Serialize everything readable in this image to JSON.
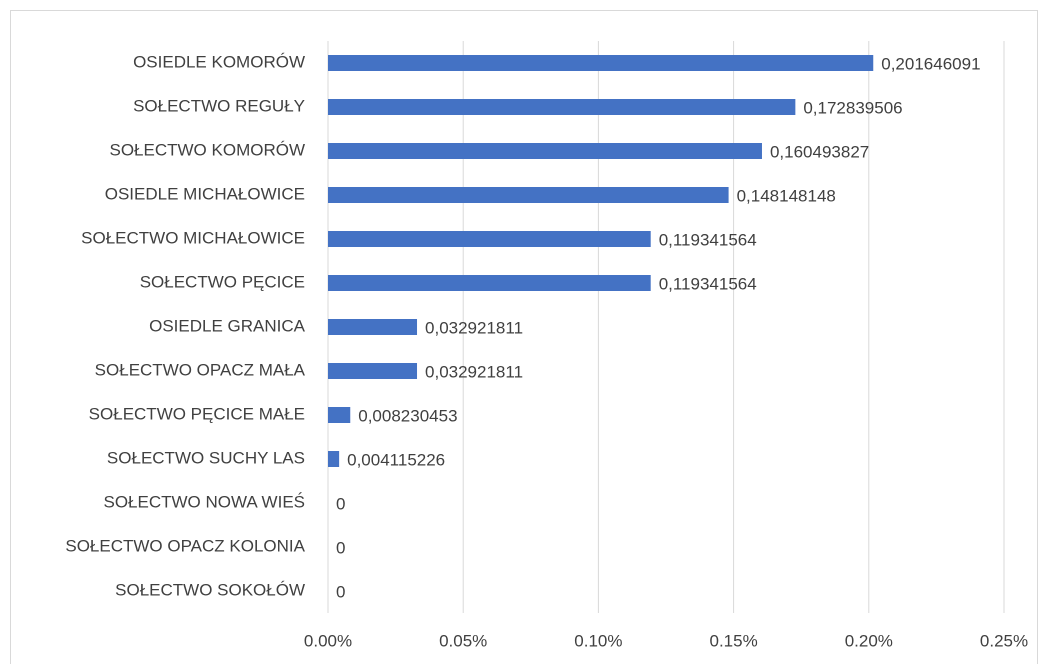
{
  "chart_data": {
    "type": "bar",
    "orientation": "horizontal",
    "categories": [
      "OSIEDLE KOMORÓW",
      "SOŁECTWO REGUŁY",
      "SOŁECTWO KOMORÓW",
      "OSIEDLE MICHAŁOWICE",
      "SOŁECTWO MICHAŁOWICE",
      "SOŁECTWO PĘCICE",
      "OSIEDLE GRANICA",
      "SOŁECTWO OPACZ MAŁA",
      "SOŁECTWO PĘCICE MAŁE",
      "SOŁECTWO SUCHY LAS",
      "SOŁECTWO NOWA WIEŚ",
      "SOŁECTWO OPACZ KOLONIA",
      "SOŁECTWO SOKOŁÓW"
    ],
    "values": [
      0.201646091,
      0.172839506,
      0.160493827,
      0.148148148,
      0.119341564,
      0.119341564,
      0.032921811,
      0.032921811,
      0.008230453,
      0.004115226,
      0,
      0,
      0
    ],
    "value_labels": [
      "0,201646091",
      "0,172839506",
      "0,160493827",
      "0,148148148",
      "0,119341564",
      "0,119341564",
      "0,032921811",
      "0,032921811",
      "0,008230453",
      "0,004115226",
      "0",
      "0",
      "0"
    ],
    "color": "#4472c4",
    "xlim": [
      0,
      0.25
    ],
    "xticks": [
      {
        "value": 0,
        "label": "0.00%"
      },
      {
        "value": 0.05,
        "label": "0.05%"
      },
      {
        "value": 0.1,
        "label": "0.10%"
      },
      {
        "value": 0.15,
        "label": "0.15%"
      },
      {
        "value": 0.2,
        "label": "0.20%"
      },
      {
        "value": 0.25,
        "label": "0.25%"
      }
    ],
    "grid": true
  }
}
